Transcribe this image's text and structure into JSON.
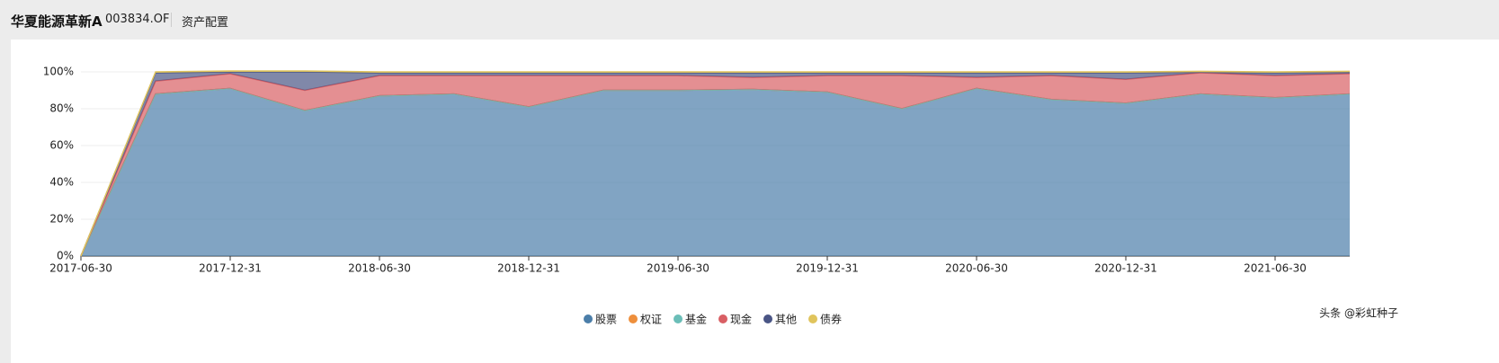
{
  "header": {
    "fund_name": "华夏能源革新A",
    "fund_code": "003834.OF",
    "section": "资产配置"
  },
  "watermark": "头条 @彩虹种子",
  "chart_data": {
    "type": "stacked-area",
    "categories": [
      "2017-06-30",
      null,
      "2017-12-31",
      null,
      "2018-06-30",
      null,
      "2018-12-31",
      null,
      "2019-06-30",
      null,
      "2019-12-31",
      null,
      "2020-06-30",
      null,
      "2020-12-31",
      null,
      "2021-06-30",
      null
    ],
    "series": [
      {
        "name": "股票",
        "color": "#4b7ea9",
        "values": [
          0,
          88,
          91,
          79,
          87,
          88,
          81,
          90,
          90,
          90.5,
          89,
          80,
          91,
          85,
          83,
          88,
          86,
          88
        ]
      },
      {
        "name": "权证",
        "color": "#ee8f3c",
        "values": [
          0,
          0,
          0,
          0,
          0,
          0,
          0,
          0,
          0,
          0,
          0,
          0,
          0,
          0,
          0,
          0,
          0,
          0
        ]
      },
      {
        "name": "基金",
        "color": "#6bbeb8",
        "values": [
          0,
          0,
          0,
          0,
          0,
          0,
          0,
          0,
          0,
          0,
          0,
          0,
          0,
          0,
          0,
          0,
          0,
          0
        ]
      },
      {
        "name": "现金",
        "color": "#d95f64",
        "values": [
          0,
          7,
          8,
          11,
          11,
          10,
          17,
          8,
          8,
          6.5,
          9,
          18,
          6,
          13,
          13,
          11.5,
          12,
          11
        ]
      },
      {
        "name": "其他",
        "color": "#4a5585",
        "values": [
          0,
          4.5,
          1,
          10,
          1.5,
          1.5,
          1.5,
          1.5,
          1.5,
          2.5,
          1.5,
          1.5,
          2.5,
          1.5,
          3.5,
          0.3,
          1.5,
          0.8
        ]
      },
      {
        "name": "债券",
        "color": "#e0c45c",
        "values": [
          0,
          0.5,
          0.5,
          0.5,
          0.5,
          0.5,
          0.5,
          0.5,
          0.5,
          0.5,
          0.5,
          0.5,
          0.5,
          0.5,
          0.5,
          0.5,
          0.5,
          0.5
        ]
      }
    ],
    "ylim": [
      0,
      100
    ],
    "yticks": [
      {
        "value": 0,
        "label": "0%"
      },
      {
        "value": 20,
        "label": "20%"
      },
      {
        "value": 40,
        "label": "40%"
      },
      {
        "value": 60,
        "label": "60%"
      },
      {
        "value": 80,
        "label": "80%"
      },
      {
        "value": 100,
        "label": "100%"
      }
    ],
    "grid": true,
    "legend": "bottom"
  }
}
